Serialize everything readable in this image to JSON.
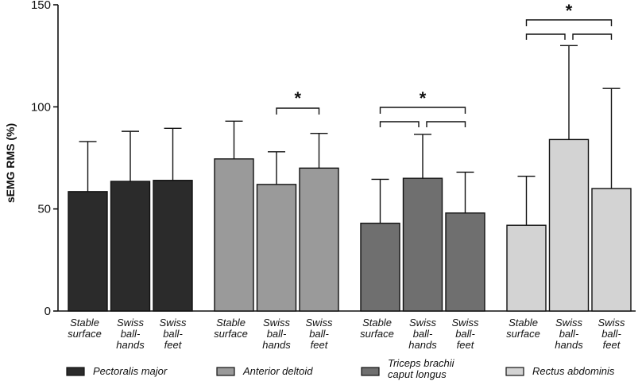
{
  "chart_data": {
    "type": "bar",
    "ylabel": "sEMG RMS (%)",
    "ylim": [
      0,
      150
    ],
    "yticks": [
      0,
      50,
      100,
      150
    ],
    "grid": false,
    "legend_position": "bottom",
    "categories": [
      [
        "Stable",
        "surface"
      ],
      [
        "Swiss",
        "ball-",
        "hands"
      ],
      [
        "Swiss",
        "ball-",
        "feet"
      ]
    ],
    "series": [
      {
        "name": [
          "Pectoralis major"
        ],
        "color": "#2b2b2b",
        "values": [
          58.5,
          63.5,
          64
        ],
        "errors": [
          83,
          88,
          89.5
        ]
      },
      {
        "name": [
          "Anterior deltoid"
        ],
        "color": "#9a9a9a",
        "values": [
          74.5,
          62,
          70
        ],
        "errors": [
          93,
          78,
          87
        ]
      },
      {
        "name": [
          "Triceps brachii",
          "caput longus"
        ],
        "color": "#6f6f6f",
        "values": [
          43,
          65,
          48
        ],
        "errors": [
          64.5,
          86.5,
          68
        ]
      },
      {
        "name": [
          "Rectus abdominis"
        ],
        "color": "#d3d3d3",
        "values": [
          42,
          84,
          60
        ],
        "errors": [
          66,
          130,
          109
        ]
      }
    ],
    "significance": [
      {
        "series": 1,
        "pairs": [
          [
            1,
            2
          ]
        ],
        "label": "*"
      },
      {
        "series": 2,
        "pairs": [
          [
            0,
            1
          ],
          [
            1,
            2
          ]
        ],
        "label": "*"
      },
      {
        "series": 3,
        "pairs": [
          [
            0,
            1
          ],
          [
            1,
            2
          ]
        ],
        "label": "*"
      }
    ]
  }
}
